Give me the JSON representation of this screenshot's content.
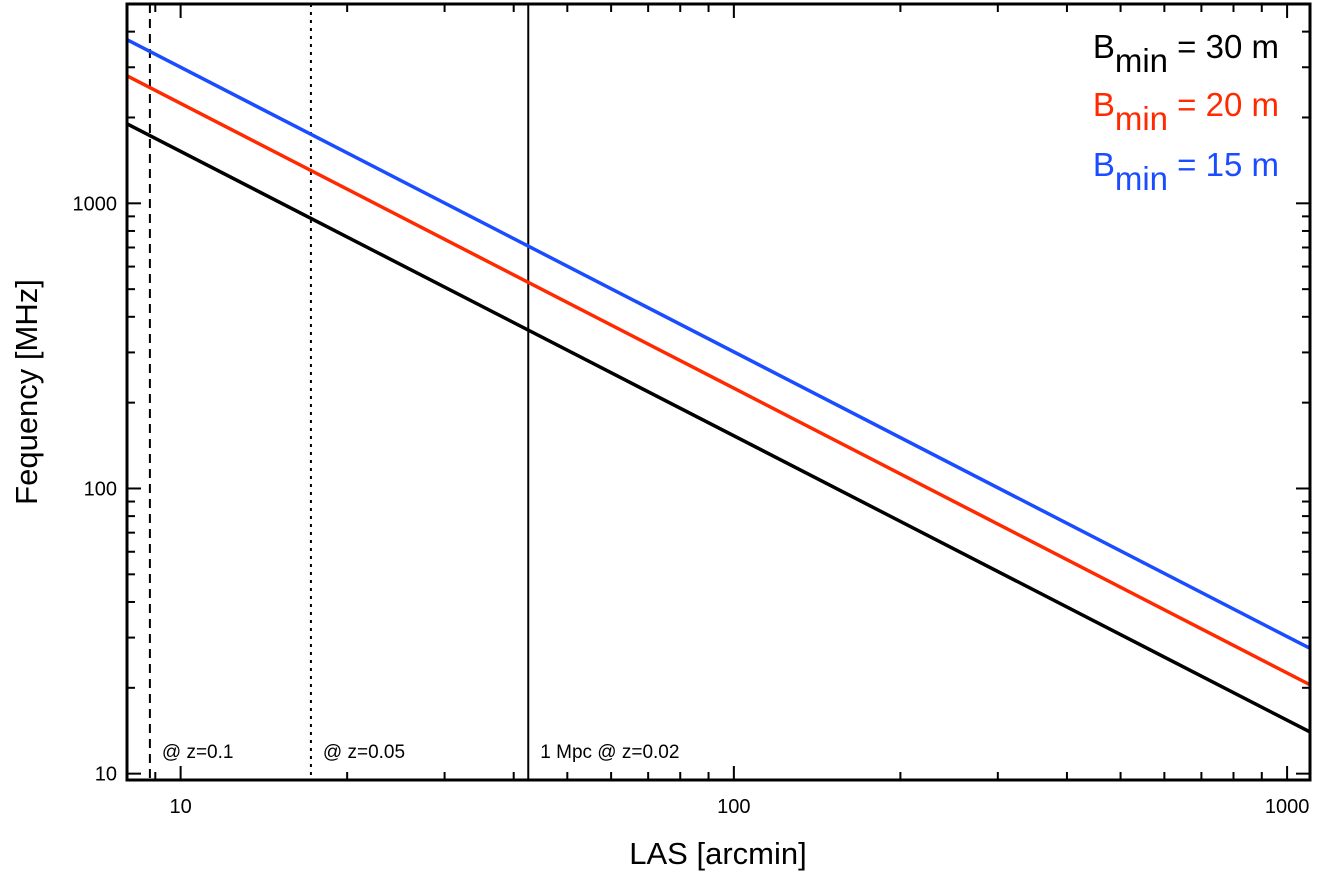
{
  "chart_data": {
    "type": "line",
    "xlabel": "LAS [arcmin]",
    "ylabel": "Fequency [MHz]",
    "xscale": "log",
    "yscale": "log",
    "xlim": [
      8,
      1100
    ],
    "ylim": [
      9.5,
      5000
    ],
    "x_ticks": [
      {
        "value": 10,
        "label": "10"
      },
      {
        "value": 100,
        "label": "100"
      },
      {
        "value": 1000,
        "label": "1000"
      }
    ],
    "y_ticks": [
      {
        "value": 10,
        "label": "10"
      },
      {
        "value": 100,
        "label": "100"
      },
      {
        "value": 1000,
        "label": "1000"
      }
    ],
    "series": [
      {
        "name": "B_min = 30 m",
        "base": "B",
        "sub": "min",
        "rest": " = 30 m",
        "color": "#000000",
        "x": [
          8,
          1100
        ],
        "y": [
          1900,
          14
        ]
      },
      {
        "name": "B_min = 20 m",
        "base": "B",
        "sub": "min",
        "rest": " = 20 m",
        "color": "#ff2a00",
        "x": [
          8,
          1100
        ],
        "y": [
          2800,
          20.5
        ]
      },
      {
        "name": "B_min = 15 m",
        "base": "B",
        "sub": "min",
        "rest": " = 15 m",
        "color": "#1a4dff",
        "x": [
          8,
          1100
        ],
        "y": [
          3750,
          27.5
        ]
      }
    ],
    "vlines": [
      {
        "x": 8.8,
        "style": "dashed",
        "label": "@ z=0.1"
      },
      {
        "x": 17.2,
        "style": "dotted",
        "label": "@ z=0.05"
      },
      {
        "x": 42.5,
        "style": "solid",
        "label": "1 Mpc @ z=0.02"
      }
    ],
    "legend_position": "top-right"
  }
}
